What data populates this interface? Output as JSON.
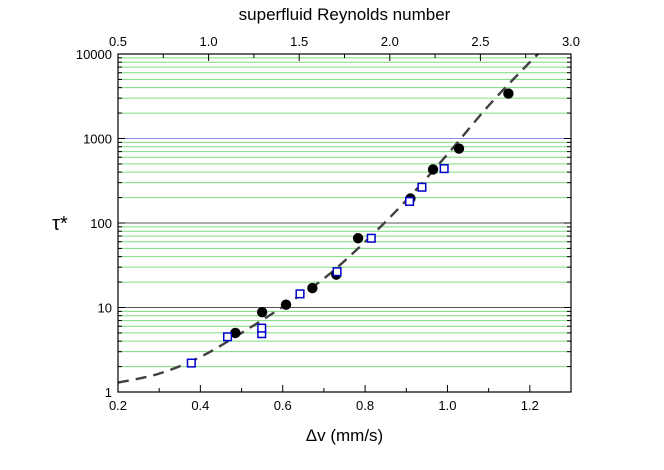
{
  "chart_data": {
    "type": "scatter",
    "title": "",
    "xlabel": "Δv (mm/s)",
    "ylabel": "τ*",
    "top_xlabel": "superfluid Reynolds number",
    "xlim": [
      0.2,
      1.3
    ],
    "ylim": [
      1,
      10000
    ],
    "yscale": "log",
    "top_xlim": [
      0.5,
      3.0
    ],
    "x_ticks": [
      "0.2",
      "0.4",
      "0.6",
      "0.8",
      "1.0",
      "1.2"
    ],
    "x_tick_values": [
      0.2,
      0.4,
      0.6,
      0.8,
      1.0,
      1.2
    ],
    "top_x_ticks": [
      "0.5",
      "1.0",
      "1.5",
      "2.0",
      "2.5",
      "3.0"
    ],
    "top_x_tick_values": [
      0.5,
      1.0,
      1.5,
      2.0,
      2.5,
      3.0
    ],
    "y_ticks": [
      "1",
      "10",
      "100",
      "1000",
      "10000"
    ],
    "y_tick_values": [
      1,
      10,
      100,
      1000,
      10000
    ],
    "grid": "horizontal minor lines (green), major decades (dark)",
    "colors": {
      "minor_grid": "#7ddc7d",
      "major_grid": "#555555",
      "major_grid_1000": "#8a8ae6",
      "series_filled": "#000000",
      "series_open": "#0000cc",
      "fit_line": "#404040"
    },
    "series": [
      {
        "marker": "filled-circle",
        "x": [
          0.485,
          0.55,
          0.608,
          0.672,
          0.73,
          0.783,
          0.91,
          0.965,
          1.028,
          1.148
        ],
        "y": [
          5.0,
          8.8,
          10.8,
          17.0,
          24.5,
          66,
          195,
          430,
          760,
          3400
        ]
      },
      {
        "marker": "open-square",
        "x": [
          0.378,
          0.466,
          0.549,
          0.549,
          0.642,
          0.732,
          0.815,
          0.908,
          0.938,
          0.992
        ],
        "y": [
          2.2,
          4.5,
          4.9,
          5.7,
          14.5,
          26.5,
          66,
          180,
          265,
          440
        ]
      },
      {
        "style": "dashed-fit",
        "x": [
          0.2,
          0.3,
          0.4,
          0.5,
          0.6,
          0.7,
          0.8,
          0.9,
          1.0,
          1.1,
          1.2,
          1.22
        ],
        "y": [
          1.29,
          1.65,
          2.6,
          5.0,
          10.2,
          22,
          60,
          185,
          650,
          2450,
          8000,
          10000
        ]
      }
    ]
  }
}
